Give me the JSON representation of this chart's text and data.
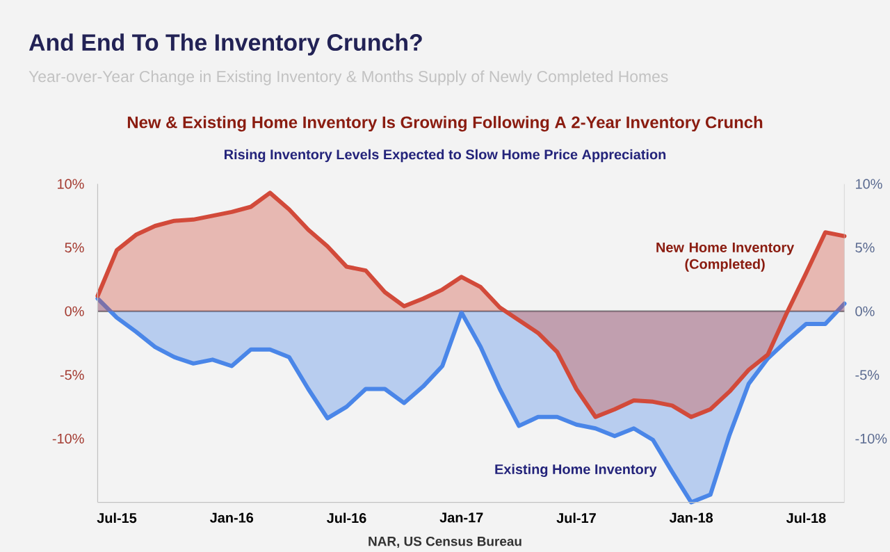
{
  "chart_data": {
    "type": "area",
    "title": "And End To The Inventory Crunch?",
    "subtitle": "Year-over-Year Change in Existing Inventory & Months Supply of Newly Completed Homes",
    "annotations": [
      "New & Existing Home Inventory Is Growing Following A 2-Year Inventory Crunch",
      "Rising Inventory Levels Expected to Slow Home Price Appreciation",
      "NAR, US Census Bureau"
    ],
    "x": [
      "2015-06",
      "2015-07",
      "2015-08",
      "2015-09",
      "2015-10",
      "2015-11",
      "2015-12",
      "2016-01",
      "2016-02",
      "2016-03",
      "2016-04",
      "2016-05",
      "2016-06",
      "2016-07",
      "2016-08",
      "2016-09",
      "2016-10",
      "2016-11",
      "2016-12",
      "2017-01",
      "2017-02",
      "2017-03",
      "2017-04",
      "2017-05",
      "2017-06",
      "2017-07",
      "2017-08",
      "2017-09",
      "2017-10",
      "2017-11",
      "2017-12",
      "2018-01",
      "2018-02",
      "2018-03",
      "2018-04",
      "2018-05",
      "2018-06",
      "2018-07",
      "2018-08",
      "2018-09"
    ],
    "series": [
      {
        "name": "New Home Inventory (Completed)",
        "color": "#d24a3a",
        "values": [
          1.2,
          4.8,
          6.0,
          6.7,
          7.1,
          7.2,
          7.5,
          7.8,
          8.2,
          9.3,
          8.0,
          6.4,
          5.1,
          3.5,
          3.2,
          1.5,
          0.4,
          1.0,
          1.7,
          2.7,
          1.9,
          0.3,
          -0.7,
          -1.7,
          -3.2,
          -6.1,
          -8.3,
          -7.7,
          -7.0,
          -7.1,
          -7.4,
          -8.3,
          -7.7,
          -6.3,
          -4.6,
          -3.4,
          -0.1,
          3.0,
          6.2,
          5.9
        ]
      },
      {
        "name": "Existing Home Inventory",
        "color": "#4a86e8",
        "values": [
          1.0,
          -0.5,
          -1.6,
          -2.8,
          -3.6,
          -4.1,
          -3.8,
          -4.3,
          -3.0,
          -3.0,
          -3.6,
          -6.1,
          -8.4,
          -7.5,
          -6.1,
          -6.1,
          -7.2,
          -5.9,
          -4.3,
          -0.1,
          -2.8,
          -6.1,
          -9.0,
          -8.3,
          -8.3,
          -8.9,
          -9.2,
          -9.8,
          -9.2,
          -10.1,
          -12.6,
          -15,
          -14.4,
          -9.7,
          -5.7,
          -3.7,
          -2.3,
          -1.0,
          -1.0,
          0.6
        ]
      }
    ],
    "xlim": [
      "2015-06",
      "2018-09"
    ],
    "xticks": [
      {
        "value": "2015-07",
        "label": "Jul-15"
      },
      {
        "value": "2016-01",
        "label": "Jan-16"
      },
      {
        "value": "2016-07",
        "label": "Jul-16"
      },
      {
        "value": "2017-01",
        "label": "Jan-17"
      },
      {
        "value": "2017-07",
        "label": "Jul-17"
      },
      {
        "value": "2018-01",
        "label": "Jan-18"
      },
      {
        "value": "2018-07",
        "label": "Jul-18"
      }
    ],
    "ylim": [
      -15,
      10
    ],
    "yticks": [
      {
        "value": 10,
        "label": "10%"
      },
      {
        "value": 5,
        "label": "5%"
      },
      {
        "value": 0,
        "label": "0%"
      },
      {
        "value": -5,
        "label": "-5%"
      },
      {
        "value": -10,
        "label": "-10%"
      }
    ],
    "y2lim": [
      -15,
      10
    ],
    "y2ticks": [
      {
        "value": 10,
        "label": "10%"
      },
      {
        "value": 5,
        "label": "5%"
      },
      {
        "value": 0,
        "label": "0%"
      },
      {
        "value": -5,
        "label": "-5%"
      },
      {
        "value": -10,
        "label": "-10%"
      }
    ],
    "ref_lines": [
      {
        "axis": "y",
        "value": 0,
        "color": "#7f7f7f"
      }
    ],
    "grid": false
  }
}
